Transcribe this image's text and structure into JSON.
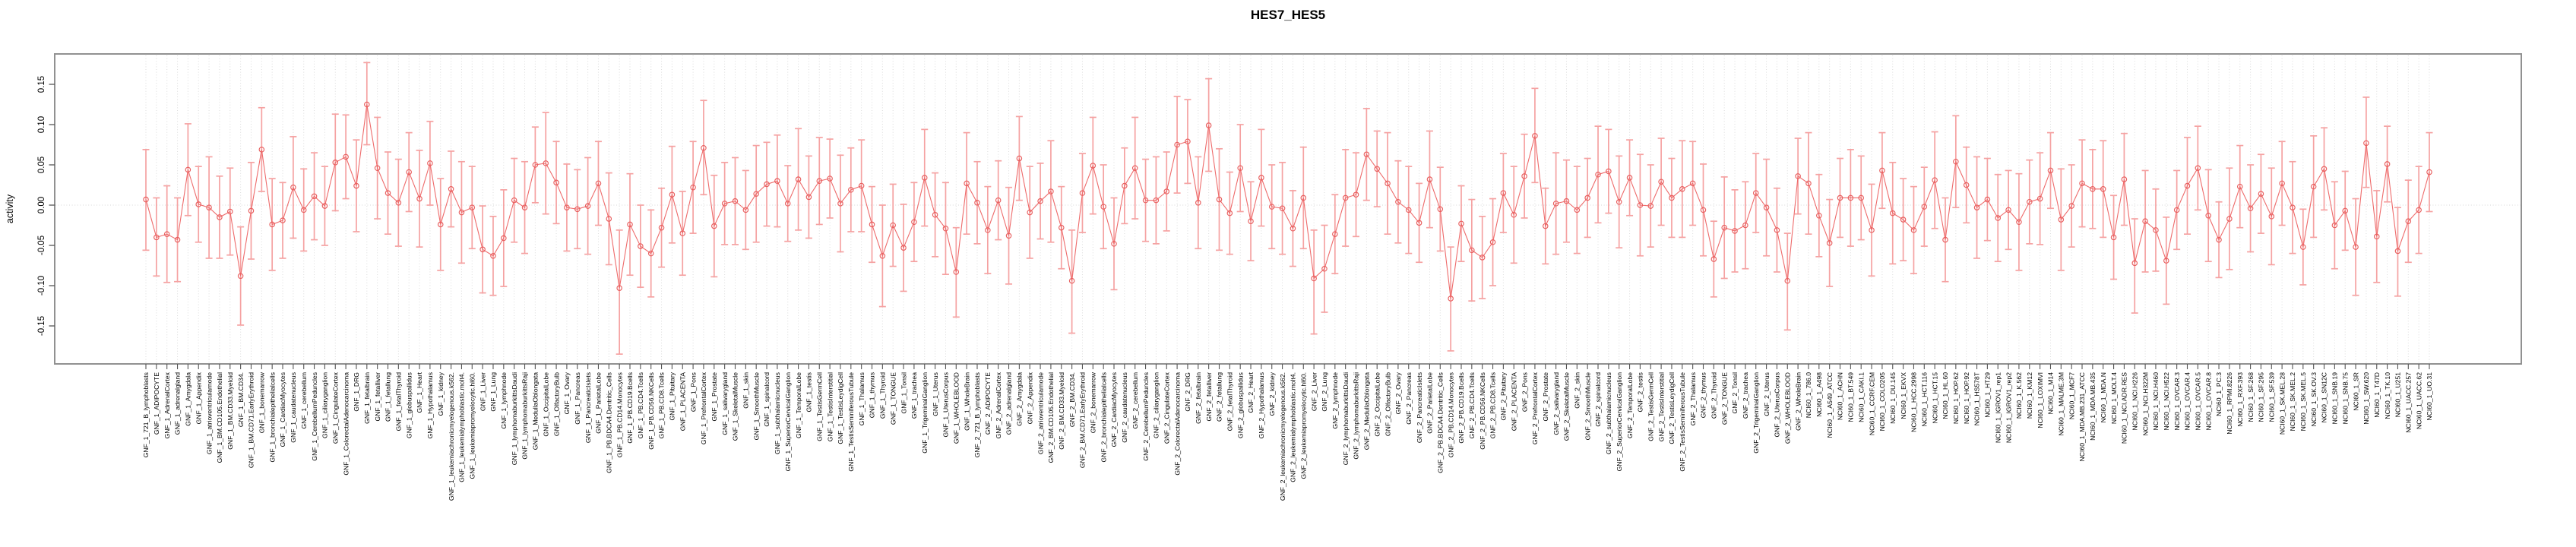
{
  "colors": {
    "errorbar": "#f5a2a2",
    "line": "#ee6b6b",
    "marker_stroke": "#e85f5f",
    "marker_fill": "#ffffff",
    "grid": "#dcdcdc",
    "zero_line": "#d7d7d7",
    "box": "#919191",
    "tick": "#555555",
    "text": "#000000"
  },
  "chart_data": {
    "type": "line",
    "subtype": "points-with-error-bars",
    "title": "HES7_HES5",
    "xlabel": "",
    "ylabel": "activity",
    "ylim": [
      -0.197,
      0.188
    ],
    "yticks": [
      0.15,
      0.1,
      0.05,
      0.0,
      -0.05,
      -0.1,
      -0.15
    ],
    "ytick_labels": [
      "0.15",
      "0.10",
      "0.05",
      "0.00",
      "-0.05",
      "-0.10",
      "-0.15"
    ],
    "grid": "vertical dotted line per category plus dotted zero line",
    "legend_position": "none",
    "categories": [
      "GNF_1_721_B_lymphoblasts",
      "GNF_1_ADIPOCYTE",
      "GNF_1_AdrenalCortex",
      "GNF_1_adrenalgland",
      "GNF_1_Amygdala",
      "GNF_1_Appendix",
      "GNF_1_atrioventricularnode",
      "GNF_1_BM.CD105.Endothelial",
      "GNF_1_BM.CD33.Myeloid",
      "GNF_1_BM.CD34.",
      "GNF_1_BM.CD71.EarlyErythroid",
      "GNF_1_bonemarrow",
      "GNF_1_bronchialepithelialcells",
      "GNF_1_CardiacMyocytes",
      "GNF_1_caudatenucleus",
      "GNF_1_cerebellum",
      "GNF_1_CerebellumPeduncles",
      "GNF_1_ciliaryganglion",
      "GNF_1_CingulateCortex",
      "GNF_1_ColorectalAdenocarcinoma",
      "GNF_1_DRG",
      "GNF_1_fetalbrain",
      "GNF_1_fetalliver",
      "GNF_1_fetallung",
      "GNF_1_fetalThyroid",
      "GNF_1_globuspallidus",
      "GNF_1_Heart",
      "GNF_1_Hypothalamus",
      "GNF_1_kidney",
      "GNF_1_leukemiachronicmyelogenous.k562.",
      "GNF_1_leukemialymphoblastic.molt4.",
      "GNF_1_leukemiapromyelocytic.hl60.",
      "GNF_1_Liver",
      "GNF_1_Lung",
      "GNF_1_lymphnode",
      "GNF_1_lymphomaburkittsDaudi",
      "GNF_1_lymphomaburkittsRaji",
      "GNF_1_MedullaOblongata",
      "GNF_1_OccipitalLobe",
      "GNF_1_OlfactoryBulb",
      "GNF_1_Ovary",
      "GNF_1_Pancreas",
      "GNF_1_PancreaticIslets",
      "GNF_1_ParietalLobe",
      "GNF_1_PB.BDCA4.Dentritic_Cells",
      "GNF_1_PB.CD14.Monocytes",
      "GNF_1_PB.CD19.Bcells",
      "GNF_1_PB.CD4.Tcells",
      "GNF_1_PB.CD56.NKCells",
      "GNF_1_PB.CD8.Tcells",
      "GNF_1_Pituitary",
      "GNF_1_PLACENTA",
      "GNF_1_Pons",
      "GNF_1_PrefrontalCortex",
      "GNF_1_Prostate",
      "GNF_1_salivarygland",
      "GNF_1_SkeletalMuscle",
      "GNF_1_skin",
      "GNF_1_SmoothMuscle",
      "GNF_1_spinalcord",
      "GNF_1_subthalamicnucleus",
      "GNF_1_SuperiorCervicalGanglion",
      "GNF_1_TemporalLobe",
      "GNF_1_testis",
      "GNF_1_TestisGermCell",
      "GNF_1_TestisInterstitial",
      "GNF_1_TestisLeydigCell",
      "GNF_1_TestisSeminiferousTubule",
      "GNF_1_Thalamus",
      "GNF_1_thymus",
      "GNF_1_Thyroid",
      "GNF_1_TONGUE",
      "GNF_1_Tonsil",
      "GNF_1_trachea",
      "GNF_1_TrigeminalGanglion",
      "GNF_1_Uterus",
      "GNF_1_UterusCorpus",
      "GNF_1_WHOLEBLOOD",
      "GNF_1_WholeBrain",
      "GNF_2_721_B_lymphoblasts",
      "GNF_2_ADIPOCYTE",
      "GNF_2_AdrenalCortex",
      "GNF_2_adrenalgland",
      "GNF_2_Amygdala",
      "GNF_2_Appendix",
      "GNF_2_atrioventricularnode",
      "GNF_2_BM.CD105.Endothelial",
      "GNF_2_BM.CD33.Myeloid",
      "GNF_2_BM.CD34.",
      "GNF_2_BM.CD71.EarlyErythroid",
      "GNF_2_bonemarrow",
      "GNF_2_bronchialepithelialcells",
      "GNF_2_CardiacMyocytes",
      "GNF_2_caudatenucleus",
      "GNF_2_cerebellum",
      "GNF_2_CerebellumPeduncles",
      "GNF_2_ciliaryganglion",
      "GNF_2_CingulateCortex",
      "GNF_2_ColorectalAdenocarcinoma",
      "GNF_2_DRG",
      "GNF_2_fetalbrain",
      "GNF_2_fetalliver",
      "GNF_2_fetallung",
      "GNF_2_fetalThyroid",
      "GNF_2_globuspallidus",
      "GNF_2_Heart",
      "GNF_2_Hypothalamus",
      "GNF_2_kidney",
      "GNF_2_leukemiachronicmyelogenous.k562.",
      "GNF_2_leukemialymphoblastic.molt4.",
      "GNF_2_leukemiapromyelocytic.hl60.",
      "GNF_2_Liver",
      "GNF_2_Lung",
      "GNF_2_lymphnode",
      "GNF_2_lymphomaburkittsDaudi",
      "GNF_2_lymphomaburkittsRaji",
      "GNF_2_MedullaOblongata",
      "GNF_2_OccipitalLobe",
      "GNF_2_OlfactoryBulb",
      "GNF_2_Ovary",
      "GNF_2_Pancreas",
      "GNF_2_PancreaticIslets",
      "GNF_2_ParietalLobe",
      "GNF_2_PB.BDCA4.Dentritic_Cells",
      "GNF_2_PB.CD14.Monocytes",
      "GNF_2_PB.CD19.Bcells",
      "GNF_2_PB.CD4.Tcells",
      "GNF_2_PB.CD56.NKCells",
      "GNF_2_PB.CD8.Tcells",
      "GNF_2_Pituitary",
      "GNF_2_PLACENTA",
      "GNF_2_Pons",
      "GNF_2_PrefrontalCortex",
      "GNF_2_Prostate",
      "GNF_2_salivarygland",
      "GNF_2_SkeletalMuscle",
      "GNF_2_skin",
      "GNF_2_SmoothMuscle",
      "GNF_2_spinalcord",
      "GNF_2_subthalamicnucleus",
      "GNF_2_SuperiorCervicalGanglion",
      "GNF_2_TemporalLobe",
      "GNF_2_testis",
      "GNF_2_TestisGermCell",
      "GNF_2_TestisInterstitial",
      "GNF_2_TestisLeydigCell",
      "GNF_2_TestisSeminiferousTubule",
      "GNF_2_Thalamus",
      "GNF_2_thymus",
      "GNF_2_Thyroid",
      "GNF_2_TONGUE",
      "GNF_2_Tonsil",
      "GNF_2_trachea",
      "GNF_2_TrigeminalGanglion",
      "GNF_2_Uterus",
      "GNF_2_UterusCorpus",
      "GNF_2_WHOLEBLOOD",
      "GNF_2_WholeBrain",
      "NCI60_1_786.0",
      "NCI60_1_A498",
      "NCI60_1_A549_ATCC",
      "NCI60_1_ACHN",
      "NCI60_1_BT.549",
      "NCI60_1_CAKI.1",
      "NCI60_1_CCRF.CEM",
      "NCI60_1_COLO205",
      "NCI60_1_DU.145",
      "NCI60_1_EKVX",
      "NCI60_1_HCC.2998",
      "NCI60_1_HCT.116",
      "NCI60_1_HCT.15",
      "NCI60_1_HL.60",
      "NCI60_1_HOP.62",
      "NCI60_1_HOP.92",
      "NCI60_1_HS578T",
      "NCI60_1_HT29",
      "NCI60_1_IGROV1_rep1",
      "NCI60_1_IGROV1_rep2",
      "NCI60_1_K.562",
      "NCI60_1_KM12",
      "NCI60_1_LOXIMVI",
      "NCI60_1_M14",
      "NCI60_1_MALME.3M",
      "NCI60_1_MCF7",
      "NCI60_1_MDA.MB.231_ATCC",
      "NCI60_1_MDA.MB.435",
      "NCI60_1_MDA.N",
      "NCI60_1_MOLT.4",
      "NCI60_1_NCI.ADR.RES",
      "NCI60_1_NCI.H226",
      "NCI60_1_NCI.H322M",
      "NCI60_1_NCI.H460",
      "NCI60_1_NCI.H522",
      "NCI60_1_OVCAR.3",
      "NCI60_1_OVCAR.4",
      "NCI60_1_OVCAR.5",
      "NCI60_1_OVCAR.8",
      "NCI60_1_PC.3",
      "NCI60_1_RPMI.8226",
      "NCI60_1_RXF.393",
      "NCI60_1_SF.268",
      "NCI60_1_SF.295",
      "NCI60_1_SF.539",
      "NCI60_1_SK.MEL.28",
      "NCI60_1_SK.MEL.2",
      "NCI60_1_SK.MEL.5",
      "NCI60_1_SK.OV.3",
      "NCI60_1_SN12C",
      "NCI60_1_SNB.19",
      "NCI60_1_SNB.75",
      "NCI60_1_SR",
      "NCI60_1_SW.620",
      "NCI60_1_T47D",
      "NCI60_1_TK.10",
      "NCI60_1_U251",
      "NCI60_1_UACC.257",
      "NCI60_1_UACC.62",
      "NCI60_1_UO.31"
    ],
    "values": [
      0.007,
      -0.04,
      -0.036,
      -0.043,
      0.044,
      0.001,
      -0.003,
      -0.015,
      -0.008,
      -0.088,
      -0.007,
      0.069,
      -0.024,
      -0.019,
      0.022,
      -0.006,
      0.011,
      -0.001,
      0.053,
      0.06,
      0.024,
      0.125,
      0.046,
      0.015,
      0.003,
      0.041,
      0.008,
      0.052,
      -0.024,
      0.02,
      -0.009,
      -0.003,
      -0.055,
      -0.063,
      -0.041,
      0.006,
      -0.003,
      0.05,
      0.052,
      0.028,
      -0.003,
      -0.005,
      -0.001,
      0.027,
      -0.017,
      -0.103,
      -0.024,
      -0.051,
      -0.06,
      -0.028,
      0.013,
      -0.035,
      0.022,
      0.071,
      -0.026,
      0.002,
      0.005,
      -0.006,
      0.014,
      0.026,
      0.03,
      0.002,
      0.032,
      0.01,
      0.03,
      0.033,
      0.002,
      0.019,
      0.024,
      -0.024,
      -0.063,
      -0.025,
      -0.053,
      -0.021,
      0.034,
      -0.012,
      -0.029,
      -0.083,
      0.027,
      0.003,
      -0.031,
      0.006,
      -0.038,
      0.058,
      -0.009,
      0.005,
      0.017,
      -0.028,
      -0.094,
      0.015,
      0.049,
      -0.002,
      -0.048,
      0.024,
      0.046,
      0.006,
      0.006,
      0.017,
      0.075,
      0.079,
      0.003,
      0.099,
      0.007,
      -0.01,
      0.046,
      -0.02,
      0.034,
      -0.002,
      -0.004,
      -0.029,
      0.009,
      -0.091,
      -0.079,
      -0.036,
      0.009,
      0.013,
      0.063,
      0.045,
      0.027,
      0.004,
      -0.006,
      -0.022,
      0.032,
      -0.005,
      -0.116,
      -0.023,
      -0.056,
      -0.065,
      -0.046,
      0.015,
      -0.012,
      0.036,
      0.086,
      -0.026,
      0.002,
      0.005,
      -0.006,
      0.009,
      0.038,
      0.042,
      0.004,
      0.034,
      0.0,
      -0.001,
      0.029,
      0.009,
      0.02,
      0.027,
      -0.006,
      -0.067,
      -0.028,
      -0.032,
      -0.025,
      0.015,
      -0.003,
      -0.031,
      -0.094,
      0.036,
      0.027,
      -0.013,
      -0.047,
      0.009,
      0.009,
      0.009,
      -0.031,
      0.043,
      -0.01,
      -0.018,
      -0.031,
      -0.002,
      0.031,
      -0.043,
      0.054,
      0.025,
      -0.003,
      0.007,
      -0.016,
      -0.006,
      -0.021,
      0.004,
      0.008,
      0.043,
      -0.018,
      -0.001,
      0.027,
      0.02,
      0.02,
      -0.04,
      0.032,
      -0.072,
      -0.02,
      -0.031,
      -0.069,
      -0.006,
      0.024,
      0.046,
      -0.013,
      -0.043,
      -0.017,
      0.023,
      -0.004,
      0.014,
      -0.014,
      0.027,
      -0.003,
      -0.052,
      0.023,
      0.045,
      -0.025,
      -0.007,
      -0.052,
      0.077,
      -0.039,
      0.051,
      -0.057,
      -0.02,
      -0.006,
      0.041
    ],
    "err_pattern": [
      0.054,
      0.049,
      0.06,
      0.052,
      0.057,
      0.047,
      0.063,
      0.051
    ],
    "err_overrides": {
      "0": [
        0.063,
        0.062
      ],
      "1": [
        0.048,
        0.049
      ],
      "9": [
        0.061,
        0.061
      ],
      "21": [
        0.05,
        0.052
      ],
      "45": [
        0.082,
        0.072
      ],
      "53": [
        0.058,
        0.059
      ],
      "77": [
        0.056,
        0.055
      ],
      "88": [
        0.065,
        0.063
      ],
      "101": [
        0.057,
        0.058
      ],
      "111": [
        0.069,
        0.06
      ],
      "124": [
        0.065,
        0.064
      ],
      "132": [
        0.058,
        0.059
      ],
      "156": [
        0.061,
        0.059
      ],
      "189": [
        0.062,
        0.055
      ],
      "211": [
        0.055,
        0.057
      ],
      "214": [
        0.056,
        0.054
      ]
    }
  }
}
